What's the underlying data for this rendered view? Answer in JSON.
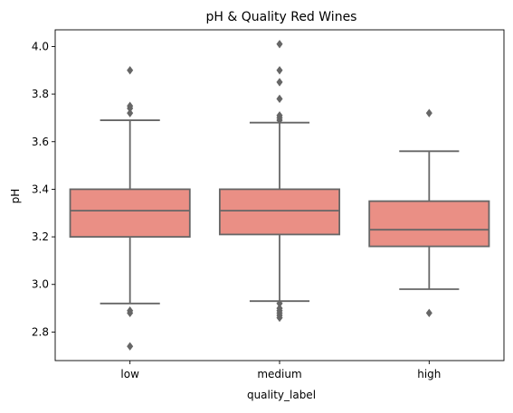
{
  "chart_data": {
    "type": "box",
    "title": "pH & Quality Red Wines",
    "xlabel": "quality_label",
    "ylabel": "pH",
    "categories": [
      "low",
      "medium",
      "high"
    ],
    "ylim": [
      2.68,
      4.07
    ],
    "yticks": [
      2.8,
      3.0,
      3.2,
      3.4,
      3.6,
      3.8,
      4.0
    ],
    "ytick_labels": [
      "2.8",
      "3.0",
      "3.2",
      "3.4",
      "3.6",
      "3.8",
      "4.0"
    ],
    "grid": false,
    "box_color": "#ea8f85",
    "line_color": "#666666",
    "boxes": [
      {
        "category": "low",
        "whisker_low": 2.92,
        "q1": 3.2,
        "median": 3.31,
        "q3": 3.4,
        "whisker_high": 3.69,
        "outliers": [
          2.74,
          2.88,
          2.89,
          3.72,
          3.74,
          3.75,
          3.9
        ]
      },
      {
        "category": "medium",
        "whisker_low": 2.93,
        "q1": 3.21,
        "median": 3.31,
        "q3": 3.4,
        "whisker_high": 3.68,
        "outliers": [
          2.86,
          2.87,
          2.88,
          2.89,
          2.9,
          2.92,
          3.69,
          3.7,
          3.71,
          3.78,
          3.85,
          3.9,
          4.01
        ]
      },
      {
        "category": "high",
        "whisker_low": 2.98,
        "q1": 3.16,
        "median": 3.23,
        "q3": 3.35,
        "whisker_high": 3.56,
        "outliers": [
          2.88,
          3.72
        ]
      }
    ]
  }
}
